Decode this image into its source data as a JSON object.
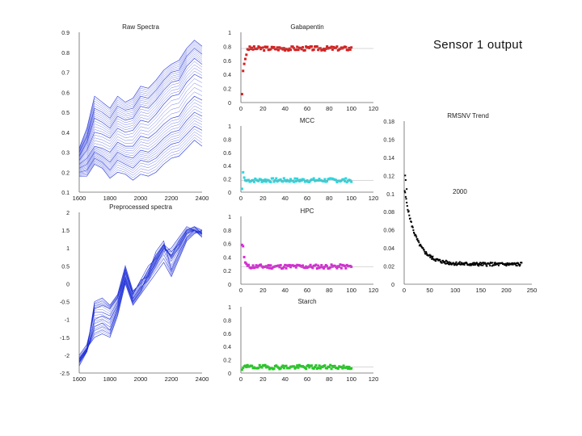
{
  "slide": {
    "caption": "Sensor 1 output"
  },
  "chart_data": [
    {
      "id": "raw",
      "type": "line",
      "title": "Raw Spectra",
      "xlabel": "",
      "ylabel": "",
      "xlim": [
        1600,
        2400
      ],
      "ylim": [
        0.1,
        0.9
      ],
      "xticks": [
        "1600",
        "1800",
        "2000",
        "2200",
        "2400"
      ],
      "yticks": [
        "0.1",
        "0.2",
        "0.3",
        "0.4",
        "0.5",
        "0.6",
        "0.7",
        "0.8",
        "0.9"
      ],
      "color": "#1a2bd6",
      "series": [
        {
          "name": "spectrum 1",
          "x": [
            1600,
            1650,
            1700,
            1750,
            1800,
            1850,
            1900,
            1950,
            2000,
            2050,
            2100,
            2150,
            2200,
            2250,
            2300,
            2350,
            2400
          ],
          "values": [
            0.32,
            0.42,
            0.58,
            0.55,
            0.52,
            0.58,
            0.55,
            0.57,
            0.63,
            0.62,
            0.66,
            0.71,
            0.74,
            0.76,
            0.82,
            0.86,
            0.83
          ]
        },
        {
          "name": "spectrum 2",
          "x": [
            1600,
            1650,
            1700,
            1750,
            1800,
            1850,
            1900,
            1950,
            2000,
            2050,
            2100,
            2150,
            2200,
            2250,
            2300,
            2350,
            2400
          ],
          "values": [
            0.3,
            0.38,
            0.52,
            0.5,
            0.47,
            0.53,
            0.51,
            0.52,
            0.58,
            0.57,
            0.61,
            0.66,
            0.7,
            0.71,
            0.78,
            0.82,
            0.79
          ]
        },
        {
          "name": "spectrum 3",
          "x": [
            1600,
            1650,
            1700,
            1750,
            1800,
            1850,
            1900,
            1950,
            2000,
            2050,
            2100,
            2150,
            2200,
            2250,
            2300,
            2350,
            2400
          ],
          "values": [
            0.28,
            0.35,
            0.47,
            0.45,
            0.42,
            0.48,
            0.46,
            0.47,
            0.53,
            0.52,
            0.56,
            0.61,
            0.65,
            0.66,
            0.73,
            0.77,
            0.74
          ]
        },
        {
          "name": "spectrum 4",
          "x": [
            1600,
            1650,
            1700,
            1750,
            1800,
            1850,
            1900,
            1950,
            2000,
            2050,
            2100,
            2150,
            2200,
            2250,
            2300,
            2350,
            2400
          ],
          "values": [
            0.26,
            0.31,
            0.4,
            0.39,
            0.37,
            0.42,
            0.4,
            0.41,
            0.46,
            0.45,
            0.49,
            0.54,
            0.58,
            0.59,
            0.65,
            0.69,
            0.67
          ]
        },
        {
          "name": "spectrum 5",
          "x": [
            1600,
            1650,
            1700,
            1750,
            1800,
            1850,
            1900,
            1950,
            2000,
            2050,
            2100,
            2150,
            2200,
            2250,
            2300,
            2350,
            2400
          ],
          "values": [
            0.24,
            0.27,
            0.33,
            0.32,
            0.3,
            0.35,
            0.33,
            0.33,
            0.38,
            0.37,
            0.4,
            0.44,
            0.47,
            0.48,
            0.54,
            0.58,
            0.56
          ]
        },
        {
          "name": "spectrum 6",
          "x": [
            1600,
            1650,
            1700,
            1750,
            1800,
            1850,
            1900,
            1950,
            2000,
            2050,
            2100,
            2150,
            2200,
            2250,
            2300,
            2350,
            2400
          ],
          "values": [
            0.22,
            0.24,
            0.3,
            0.28,
            0.25,
            0.3,
            0.28,
            0.27,
            0.31,
            0.3,
            0.33,
            0.37,
            0.4,
            0.41,
            0.46,
            0.5,
            0.48
          ]
        },
        {
          "name": "spectrum 7",
          "x": [
            1600,
            1650,
            1700,
            1750,
            1800,
            1850,
            1900,
            1950,
            2000,
            2050,
            2100,
            2150,
            2200,
            2250,
            2300,
            2350,
            2400
          ],
          "values": [
            0.2,
            0.21,
            0.27,
            0.25,
            0.21,
            0.26,
            0.24,
            0.22,
            0.26,
            0.25,
            0.27,
            0.31,
            0.34,
            0.35,
            0.39,
            0.43,
            0.41
          ]
        },
        {
          "name": "spectrum 8",
          "x": [
            1600,
            1650,
            1700,
            1750,
            1800,
            1850,
            1900,
            1950,
            2000,
            2050,
            2100,
            2150,
            2200,
            2250,
            2300,
            2350,
            2400
          ],
          "values": [
            0.18,
            0.18,
            0.24,
            0.22,
            0.17,
            0.2,
            0.19,
            0.16,
            0.19,
            0.18,
            0.2,
            0.24,
            0.27,
            0.28,
            0.32,
            0.36,
            0.33
          ]
        }
      ]
    },
    {
      "id": "pre",
      "type": "line",
      "title": "Preprocessed spectra",
      "xlabel": "",
      "ylabel": "",
      "xlim": [
        1600,
        2400
      ],
      "ylim": [
        -2.5,
        2
      ],
      "xticks": [
        "1600",
        "1800",
        "2000",
        "2200",
        "2400"
      ],
      "yticks": [
        "-2.5",
        "-2",
        "-1.5",
        "-1",
        "-0.5",
        "0",
        "0.5",
        "1",
        "1.5",
        "2"
      ],
      "color": "#1a2bd6",
      "series": [
        {
          "name": "spectrum 1",
          "x": [
            1600,
            1650,
            1700,
            1750,
            1800,
            1850,
            1900,
            1950,
            2000,
            2050,
            2100,
            2150,
            2200,
            2250,
            2300,
            2350,
            2400
          ],
          "values": [
            -2.1,
            -1.8,
            -0.7,
            -0.6,
            -0.7,
            -0.4,
            0.3,
            -0.3,
            0.1,
            0.2,
            0.6,
            1.0,
            0.8,
            1.2,
            1.5,
            1.6,
            1.5
          ]
        },
        {
          "name": "spectrum 2",
          "x": [
            1600,
            1650,
            1700,
            1750,
            1800,
            1850,
            1900,
            1950,
            2000,
            2050,
            2100,
            2150,
            2200,
            2250,
            2300,
            2350,
            2400
          ],
          "values": [
            -2.2,
            -1.9,
            -0.5,
            -0.4,
            -0.6,
            -0.3,
            0.5,
            -0.2,
            0.0,
            0.4,
            0.8,
            1.1,
            0.7,
            1.0,
            1.4,
            1.5,
            1.4
          ]
        },
        {
          "name": "spectrum 3",
          "x": [
            1600,
            1650,
            1700,
            1750,
            1800,
            1850,
            1900,
            1950,
            2000,
            2050,
            2100,
            2150,
            2200,
            2250,
            2300,
            2350,
            2400
          ],
          "values": [
            -2.0,
            -1.7,
            -0.8,
            -0.8,
            -0.9,
            -0.5,
            0.2,
            -0.4,
            -0.1,
            0.1,
            0.5,
            0.9,
            1.0,
            1.3,
            1.6,
            1.5,
            1.4
          ]
        },
        {
          "name": "spectrum 4",
          "x": [
            1600,
            1650,
            1700,
            1750,
            1800,
            1850,
            1900,
            1950,
            2000,
            2050,
            2100,
            2150,
            2200,
            2250,
            2300,
            2350,
            2400
          ],
          "values": [
            -2.3,
            -1.9,
            -1.2,
            -1.1,
            -1.3,
            -0.7,
            0.1,
            -0.5,
            -0.2,
            0.3,
            0.9,
            1.2,
            0.4,
            0.9,
            1.3,
            1.5,
            1.3
          ]
        },
        {
          "name": "spectrum 5",
          "x": [
            1600,
            1650,
            1700,
            1750,
            1800,
            1850,
            1900,
            1950,
            2000,
            2050,
            2100,
            2150,
            2200,
            2250,
            2300,
            2350,
            2400
          ],
          "values": [
            -2.1,
            -1.8,
            -1.5,
            -1.4,
            -1.5,
            -0.9,
            0.0,
            -0.6,
            -0.3,
            0.0,
            0.3,
            0.6,
            0.2,
            0.7,
            1.2,
            1.4,
            1.5
          ]
        },
        {
          "name": "spectrum 6",
          "x": [
            1600,
            1650,
            1700,
            1750,
            1800,
            1850,
            1900,
            1950,
            2000,
            2050,
            2100,
            2150,
            2200,
            2250,
            2300,
            2350,
            2400
          ],
          "values": [
            -2.2,
            -1.9,
            -1.0,
            -0.9,
            -1.0,
            -0.6,
            0.4,
            -0.3,
            0.1,
            0.5,
            0.7,
            1.1,
            0.9,
            1.1,
            1.5,
            1.6,
            1.4
          ]
        }
      ]
    },
    {
      "id": "gab",
      "type": "scatter",
      "title": "Gabapentin",
      "xlim": [
        0,
        120
      ],
      "ylim": [
        0,
        1
      ],
      "xticks": [
        "0",
        "20",
        "40",
        "60",
        "80",
        "100",
        "120"
      ],
      "yticks": [
        "0",
        "0.2",
        "0.4",
        "0.6",
        "0.8",
        "1"
      ],
      "color": "#d42020",
      "level": 0.77,
      "first": [
        0.12,
        0.45,
        0.55,
        0.62,
        0.68
      ],
      "n": 100,
      "seed": 3
    },
    {
      "id": "mcc",
      "type": "scatter",
      "title": "MCC",
      "xlim": [
        0,
        120
      ],
      "ylim": [
        0,
        1
      ],
      "xticks": [
        "0",
        "20",
        "40",
        "60",
        "80",
        "100",
        "120"
      ],
      "yticks": [
        "0",
        "0.2",
        "0.4",
        "0.6",
        "0.8",
        "1"
      ],
      "color": "#28d8e0",
      "level": 0.18,
      "first": [
        0.05,
        0.3,
        0.22,
        0.18,
        0.17
      ],
      "n": 100,
      "seed": 7
    },
    {
      "id": "hpc",
      "type": "scatter",
      "title": "HPC",
      "xlim": [
        0,
        120
      ],
      "ylim": [
        0,
        1
      ],
      "xticks": [
        "0",
        "20",
        "40",
        "60",
        "80",
        "100",
        "120"
      ],
      "yticks": [
        "0",
        "0.2",
        "0.4",
        "0.6",
        "0.8",
        "1"
      ],
      "color": "#d62bd6",
      "level": 0.26,
      "first": [
        0.58,
        0.56,
        0.4,
        0.32,
        0.3
      ],
      "n": 100,
      "seed": 11
    },
    {
      "id": "starch",
      "type": "scatter",
      "title": "Starch",
      "xlim": [
        0,
        120
      ],
      "ylim": [
        0,
        1
      ],
      "xticks": [
        "0",
        "20",
        "40",
        "60",
        "80",
        "100",
        "120"
      ],
      "yticks": [
        "0",
        "0.2",
        "0.4",
        "0.6",
        "0.8",
        "1"
      ],
      "color": "#22c822",
      "level": 0.09,
      "first": [
        0.05,
        0.08,
        0.1,
        0.11,
        0.09
      ],
      "n": 100,
      "seed": 19
    },
    {
      "id": "rmsd",
      "type": "scatter",
      "title": "RMSNV Trend",
      "annotation": "2000",
      "xlim": [
        0,
        250
      ],
      "ylim": [
        0,
        0.18
      ],
      "xticks": [
        "0",
        "50",
        "100",
        "150",
        "200",
        "250"
      ],
      "yticks": [
        "0",
        "0.02",
        "0.04",
        "0.06",
        "0.08",
        "0.1",
        "0.12",
        "0.14",
        "0.16",
        "0.18"
      ],
      "color": "#000000",
      "decay": {
        "a": 0.085,
        "k": 0.045,
        "base": 0.022,
        "n": 230
      },
      "outliers": [
        [
          2,
          0.12
        ],
        [
          3,
          0.115
        ],
        [
          5,
          0.105
        ]
      ]
    }
  ]
}
